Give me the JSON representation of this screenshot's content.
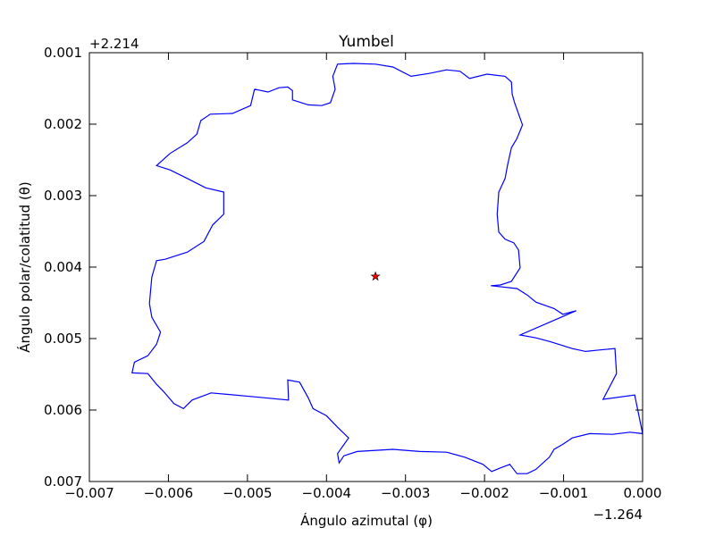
{
  "chart_data": {
    "type": "line",
    "title": "Yumbel",
    "x_label": "Ángulo azimutal (φ)",
    "y_label": "Ángulo polar/colatitud (θ)",
    "x_offset_label": "−1.264",
    "y_offset_label": "+2.214",
    "xlim": [
      -0.007,
      0.0
    ],
    "ylim": [
      0.007,
      0.001
    ],
    "xticks": [
      {
        "value": -0.007,
        "label": "−0.007"
      },
      {
        "value": -0.006,
        "label": "−0.006"
      },
      {
        "value": -0.005,
        "label": "−0.005"
      },
      {
        "value": -0.004,
        "label": "−0.004"
      },
      {
        "value": -0.003,
        "label": "−0.003"
      },
      {
        "value": -0.002,
        "label": "−0.002"
      },
      {
        "value": -0.001,
        "label": "−0.001"
      },
      {
        "value": 0.0,
        "label": "0.000"
      }
    ],
    "yticks": [
      0.001,
      0.002,
      0.003,
      0.004,
      0.005,
      0.006,
      0.007
    ],
    "grid": false,
    "series": [
      {
        "color": "#0000ff",
        "marker": "none",
        "x": [
          -0.00491,
          -0.00474,
          -0.0046,
          -0.00449,
          -0.00443,
          -0.00443,
          -0.00423,
          -0.00406,
          -0.00395,
          -0.00389,
          -0.00392,
          -0.00386,
          -0.00366,
          -0.00338,
          -0.00316,
          -0.00293,
          -0.0027,
          -0.00248,
          -0.00231,
          -0.00219,
          -0.00197,
          -0.00174,
          -0.00166,
          -0.00165,
          -0.00162,
          -0.00152,
          -0.00159,
          -0.00166,
          -0.00171,
          -0.00174,
          -0.00182,
          -0.00184,
          -0.00182,
          -0.00174,
          -0.00163,
          -0.00157,
          -0.00155,
          -0.00166,
          -0.0018,
          -0.00192,
          -0.00159,
          -0.00146,
          -0.00135,
          -0.00112,
          -0.00101,
          -0.00084,
          -0.00155,
          -0.00135,
          -0.00118,
          -0.00106,
          -0.00089,
          -0.00072,
          -0.00055,
          -0.00035,
          -0.00033,
          -0.0005,
          -0.0001,
          0.0,
          -0.00016,
          -0.00038,
          -0.00067,
          -0.00089,
          -0.00101,
          -0.00112,
          -0.00118,
          -0.00135,
          -0.00146,
          -0.00159,
          -0.00168,
          -0.0018,
          -0.00191,
          -0.00202,
          -0.00225,
          -0.00248,
          -0.00282,
          -0.00316,
          -0.00361,
          -0.00378,
          -0.00384,
          -0.00386,
          -0.00372,
          -0.00386,
          -0.004,
          -0.00417,
          -0.00423,
          -0.00434,
          -0.00449,
          -0.00448,
          -0.00496,
          -0.00546,
          -0.0057,
          -0.00581,
          -0.00593,
          -0.00607,
          -0.00615,
          -0.00626,
          -0.00646,
          -0.00643,
          -0.00626,
          -0.00615,
          -0.0061,
          -0.00621,
          -0.00624,
          -0.00621,
          -0.00615,
          -0.00604,
          -0.00576,
          -0.00555,
          -0.00544,
          -0.0053,
          -0.0053,
          -0.00553,
          -0.00576,
          -0.00598,
          -0.00615,
          -0.00598,
          -0.00576,
          -0.00564,
          -0.00559,
          -0.00547,
          -0.00519,
          -0.00496,
          -0.00491
        ],
        "values": [
          0.00151,
          0.00155,
          0.00149,
          0.00148,
          0.00153,
          0.00166,
          0.00173,
          0.00174,
          0.0017,
          0.00151,
          0.00133,
          0.00116,
          0.00115,
          0.00116,
          0.0012,
          0.00133,
          0.00129,
          0.00124,
          0.00126,
          0.00136,
          0.0013,
          0.00133,
          0.00141,
          0.00158,
          0.0017,
          0.00201,
          0.0022,
          0.00233,
          0.00258,
          0.00276,
          0.00295,
          0.00326,
          0.00351,
          0.00361,
          0.00366,
          0.00376,
          0.00401,
          0.0042,
          0.00425,
          0.00426,
          0.0043,
          0.00439,
          0.00449,
          0.00458,
          0.00466,
          0.00461,
          0.00495,
          0.00499,
          0.00504,
          0.00508,
          0.00514,
          0.00518,
          0.00516,
          0.00514,
          0.00549,
          0.00585,
          0.00579,
          0.00633,
          0.00631,
          0.00634,
          0.00633,
          0.00639,
          0.00648,
          0.00655,
          0.00666,
          0.00683,
          0.00689,
          0.00689,
          0.00676,
          0.00681,
          0.00686,
          0.00676,
          0.00666,
          0.00659,
          0.00658,
          0.00655,
          0.00658,
          0.00664,
          0.00674,
          0.00661,
          0.00639,
          0.00624,
          0.00608,
          0.00598,
          0.00583,
          0.00561,
          0.00558,
          0.00586,
          0.00581,
          0.00576,
          0.00586,
          0.00598,
          0.00591,
          0.00573,
          0.00564,
          0.00549,
          0.00548,
          0.00533,
          0.00524,
          0.00508,
          0.00491,
          0.0047,
          0.00451,
          0.00414,
          0.00391,
          0.00389,
          0.00379,
          0.00364,
          0.00341,
          0.00326,
          0.00295,
          0.00289,
          0.00276,
          0.00264,
          0.00258,
          0.00241,
          0.00226,
          0.00214,
          0.00195,
          0.00186,
          0.00185,
          0.00174,
          0.00151
        ]
      },
      {
        "color": "#ff0000",
        "marker": "star",
        "x": [
          -0.00338
        ],
        "values": [
          0.00413
        ]
      }
    ]
  }
}
